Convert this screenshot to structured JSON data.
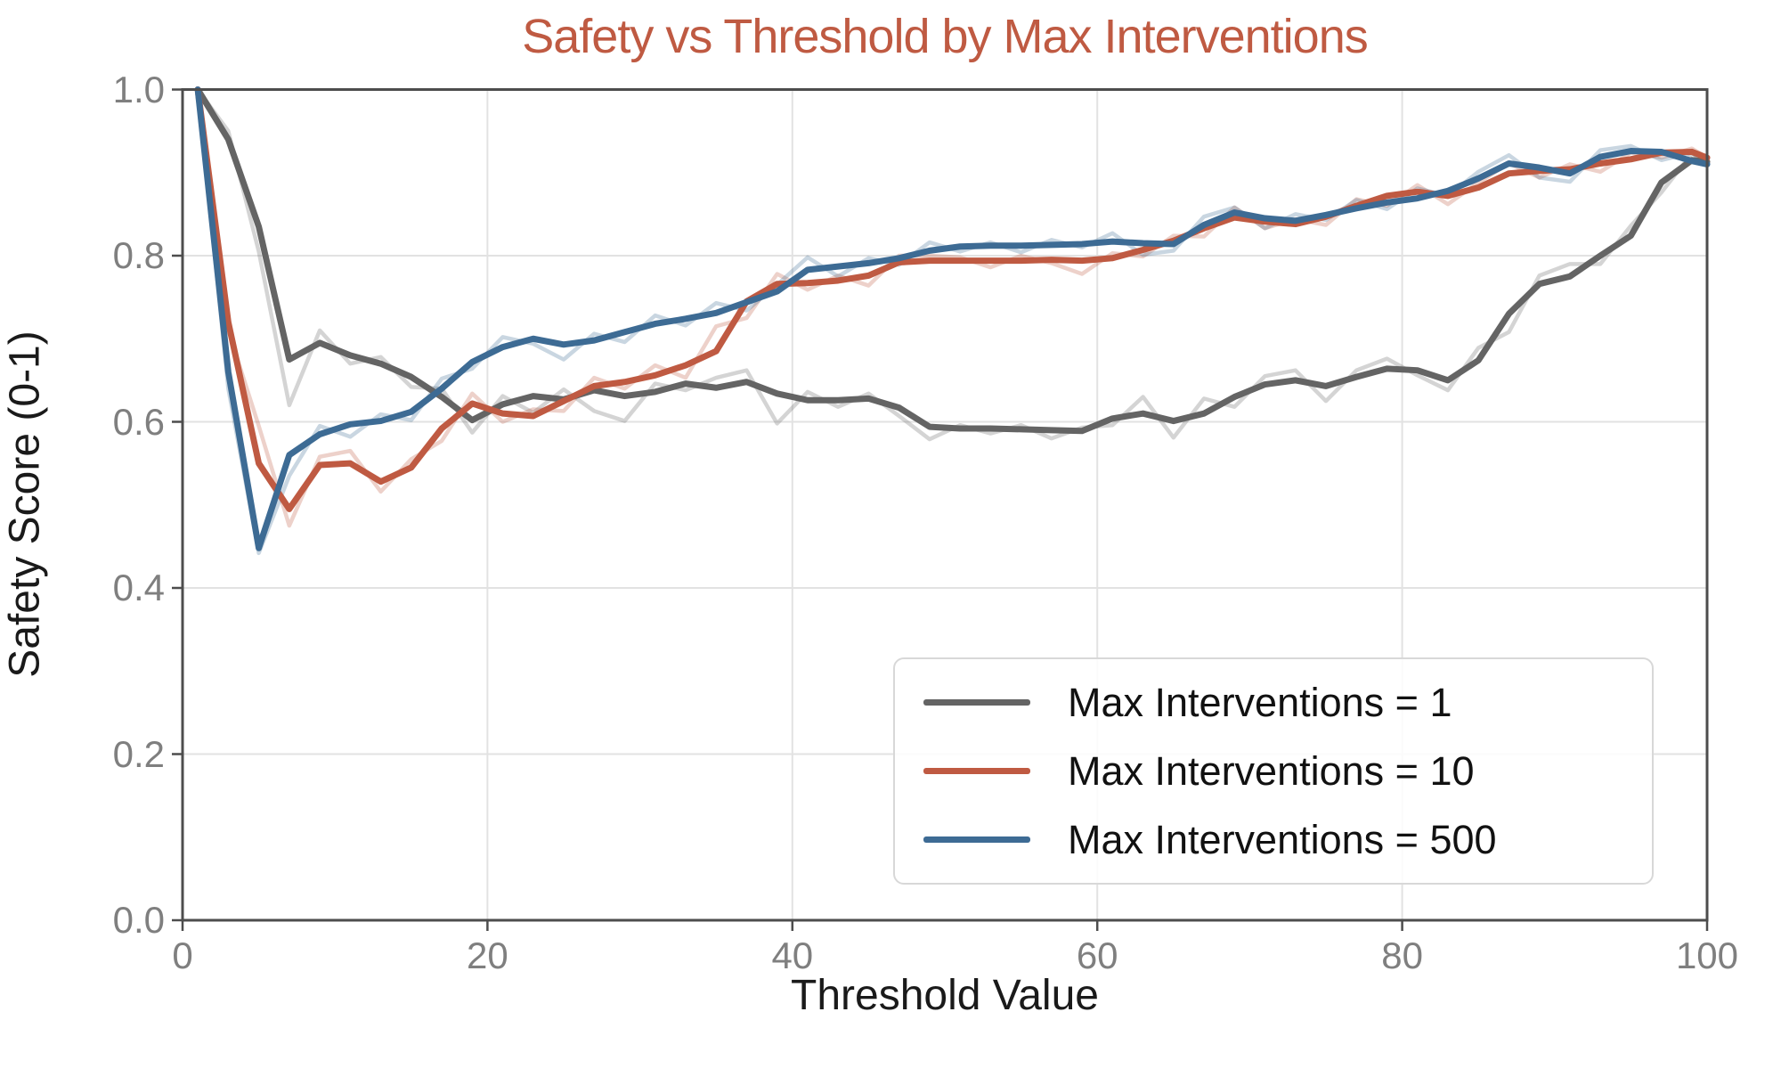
{
  "chart_data": {
    "type": "line",
    "title": "Safety vs Threshold by Max Interventions",
    "xlabel": "Threshold Value",
    "ylabel": "Safety Score (0-1)",
    "xlim": [
      0,
      100
    ],
    "ylim": [
      0.0,
      1.0
    ],
    "grid": true,
    "legend_position": "lower right",
    "title_color": "#bf5a42",
    "tick_label_color": "#7f7f7f",
    "grid_color": "#e2e2e2",
    "spine_color": "#4d4d4d",
    "xticks": [
      "0",
      "20",
      "40",
      "60",
      "80",
      "100"
    ],
    "xtick_values": [
      0,
      20,
      40,
      60,
      80,
      100
    ],
    "yticks": [
      "0.0",
      "0.2",
      "0.4",
      "0.6",
      "0.8",
      "1.0"
    ],
    "ytick_values": [
      0.0,
      0.2,
      0.4,
      0.6,
      0.8,
      1.0
    ],
    "x": [
      1,
      3,
      5,
      7,
      9,
      11,
      13,
      15,
      17,
      19,
      21,
      23,
      25,
      27,
      29,
      31,
      33,
      35,
      37,
      39,
      41,
      43,
      45,
      47,
      49,
      51,
      53,
      55,
      57,
      59,
      61,
      63,
      65,
      67,
      69,
      71,
      73,
      75,
      77,
      79,
      81,
      83,
      85,
      87,
      89,
      91,
      93,
      95,
      97,
      99,
      100
    ],
    "series": [
      {
        "name": "Max Interventions = 1",
        "color": "#646464",
        "values": [
          1.0,
          0.94,
          0.835,
          0.675,
          0.695,
          0.68,
          0.67,
          0.654,
          0.63,
          0.602,
          0.621,
          0.631,
          0.627,
          0.638,
          0.631,
          0.636,
          0.646,
          0.641,
          0.648,
          0.634,
          0.626,
          0.626,
          0.628,
          0.617,
          0.594,
          0.592,
          0.592,
          0.591,
          0.59,
          0.589,
          0.604,
          0.61,
          0.601,
          0.61,
          0.63,
          0.645,
          0.65,
          0.643,
          0.654,
          0.664,
          0.662,
          0.65,
          0.674,
          0.73,
          0.766,
          0.775,
          0.8,
          0.824,
          0.888,
          0.915,
          0.913
        ],
        "raw_values": [
          1.0,
          0.95,
          0.805,
          0.62,
          0.71,
          0.67,
          0.678,
          0.642,
          0.64,
          0.587,
          0.631,
          0.611,
          0.639,
          0.613,
          0.601,
          0.646,
          0.638,
          0.653,
          0.662,
          0.598,
          0.636,
          0.618,
          0.634,
          0.607,
          0.579,
          0.596,
          0.586,
          0.596,
          0.58,
          0.593,
          0.596,
          0.63,
          0.581,
          0.628,
          0.618,
          0.655,
          0.662,
          0.625,
          0.662,
          0.676,
          0.656,
          0.638,
          0.689,
          0.708,
          0.776,
          0.79,
          0.79,
          0.836,
          0.876,
          0.923,
          0.913
        ]
      },
      {
        "name": "Max Interventions = 10",
        "color": "#bf5a42",
        "values": [
          1.0,
          0.72,
          0.55,
          0.495,
          0.548,
          0.55,
          0.528,
          0.545,
          0.592,
          0.622,
          0.61,
          0.607,
          0.625,
          0.643,
          0.648,
          0.656,
          0.668,
          0.685,
          0.745,
          0.766,
          0.767,
          0.77,
          0.776,
          0.792,
          0.794,
          0.794,
          0.794,
          0.794,
          0.795,
          0.794,
          0.797,
          0.807,
          0.818,
          0.833,
          0.846,
          0.841,
          0.838,
          0.847,
          0.86,
          0.872,
          0.877,
          0.872,
          0.882,
          0.899,
          0.902,
          0.904,
          0.911,
          0.916,
          0.924,
          0.925,
          0.918
        ],
        "raw_values": [
          1.0,
          0.71,
          0.595,
          0.475,
          0.558,
          0.565,
          0.516,
          0.555,
          0.577,
          0.634,
          0.6,
          0.615,
          0.613,
          0.653,
          0.64,
          0.668,
          0.653,
          0.715,
          0.725,
          0.778,
          0.759,
          0.776,
          0.764,
          0.8,
          0.8,
          0.798,
          0.786,
          0.8,
          0.791,
          0.778,
          0.803,
          0.799,
          0.824,
          0.823,
          0.858,
          0.833,
          0.844,
          0.837,
          0.868,
          0.86,
          0.885,
          0.862,
          0.888,
          0.911,
          0.894,
          0.91,
          0.901,
          0.924,
          0.918,
          0.929,
          0.918
        ]
      },
      {
        "name": "Max Interventions = 500",
        "color": "#3d6b94",
        "values": [
          1.0,
          0.66,
          0.448,
          0.56,
          0.585,
          0.597,
          0.601,
          0.612,
          0.64,
          0.672,
          0.69,
          0.7,
          0.693,
          0.698,
          0.708,
          0.718,
          0.724,
          0.731,
          0.744,
          0.757,
          0.783,
          0.787,
          0.791,
          0.797,
          0.806,
          0.811,
          0.812,
          0.812,
          0.813,
          0.814,
          0.817,
          0.815,
          0.814,
          0.837,
          0.852,
          0.845,
          0.842,
          0.849,
          0.857,
          0.864,
          0.869,
          0.878,
          0.893,
          0.911,
          0.906,
          0.899,
          0.919,
          0.926,
          0.925,
          0.914,
          0.91
        ],
        "raw_values": [
          1.0,
          0.64,
          0.442,
          0.535,
          0.595,
          0.582,
          0.609,
          0.602,
          0.652,
          0.664,
          0.702,
          0.694,
          0.675,
          0.706,
          0.696,
          0.728,
          0.716,
          0.743,
          0.734,
          0.765,
          0.798,
          0.775,
          0.797,
          0.789,
          0.816,
          0.805,
          0.816,
          0.804,
          0.819,
          0.81,
          0.827,
          0.801,
          0.806,
          0.847,
          0.858,
          0.833,
          0.85,
          0.843,
          0.867,
          0.856,
          0.881,
          0.872,
          0.901,
          0.921,
          0.894,
          0.889,
          0.927,
          0.932,
          0.915,
          0.924,
          0.91
        ]
      }
    ]
  },
  "legend": {
    "items": [
      {
        "label": "Max Interventions = 1"
      },
      {
        "label": "Max Interventions = 10"
      },
      {
        "label": "Max Interventions = 500"
      }
    ]
  }
}
